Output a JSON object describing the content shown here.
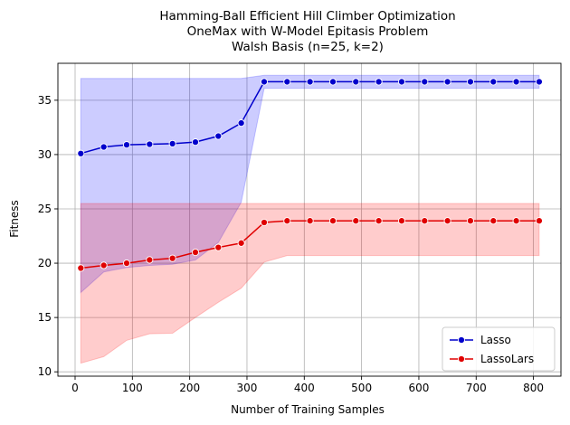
{
  "chart_data": {
    "type": "line",
    "title": [
      "Hamming-Ball Efficient Hill Climber Optimization",
      "OneMax with W-Model Epitasis Problem",
      "Walsh Basis (n=25, k=2)"
    ],
    "xlabel": "Number of Training Samples",
    "ylabel": "Fitness",
    "xlim": [
      -30,
      848
    ],
    "ylim": [
      9.6,
      38.4
    ],
    "xticks": [
      0,
      100,
      200,
      300,
      400,
      500,
      600,
      700,
      800
    ],
    "yticks": [
      10,
      15,
      20,
      25,
      30,
      35
    ],
    "grid": true,
    "legend_position": "lower-right",
    "x": [
      10,
      50,
      90,
      130,
      170,
      210,
      250,
      290,
      330,
      370,
      410,
      450,
      490,
      530,
      570,
      610,
      650,
      690,
      730,
      770,
      810
    ],
    "series": [
      {
        "name": "Lasso",
        "color": "#0000cc",
        "fill_color": "#0000ff",
        "values": [
          30.1,
          30.7,
          30.9,
          30.95,
          31.0,
          31.15,
          31.7,
          32.9,
          36.7,
          36.7,
          36.7,
          36.7,
          36.7,
          36.7,
          36.7,
          36.7,
          36.7,
          36.7,
          36.7,
          36.7,
          36.7
        ],
        "band_upper": [
          37.0,
          37.0,
          37.0,
          37.0,
          37.0,
          37.0,
          37.0,
          37.0,
          37.3,
          37.3,
          37.3,
          37.3,
          37.3,
          37.3,
          37.3,
          37.3,
          37.3,
          37.3,
          37.3,
          37.3,
          37.3
        ],
        "band_lower": [
          17.3,
          19.2,
          19.6,
          19.8,
          19.9,
          20.3,
          21.9,
          25.6,
          36.1,
          36.1,
          36.1,
          36.1,
          36.1,
          36.1,
          36.1,
          36.1,
          36.1,
          36.1,
          36.1,
          36.1,
          36.1
        ]
      },
      {
        "name": "LassoLars",
        "color": "#e00000",
        "fill_color": "#ff0000",
        "values": [
          19.55,
          19.8,
          20.0,
          20.3,
          20.45,
          21.0,
          21.45,
          21.85,
          23.75,
          23.9,
          23.9,
          23.9,
          23.9,
          23.9,
          23.9,
          23.9,
          23.9,
          23.9,
          23.9,
          23.9,
          23.9
        ],
        "band_upper": [
          25.5,
          25.5,
          25.5,
          25.5,
          25.5,
          25.5,
          25.5,
          25.5,
          25.5,
          25.5,
          25.5,
          25.5,
          25.5,
          25.5,
          25.5,
          25.5,
          25.5,
          25.5,
          25.5,
          25.5,
          25.5
        ],
        "band_lower": [
          10.8,
          11.4,
          12.9,
          13.5,
          13.55,
          15.0,
          16.4,
          17.7,
          20.1,
          20.7,
          20.7,
          20.7,
          20.7,
          20.7,
          20.7,
          20.7,
          20.7,
          20.7,
          20.7,
          20.7,
          20.7
        ]
      }
    ]
  }
}
